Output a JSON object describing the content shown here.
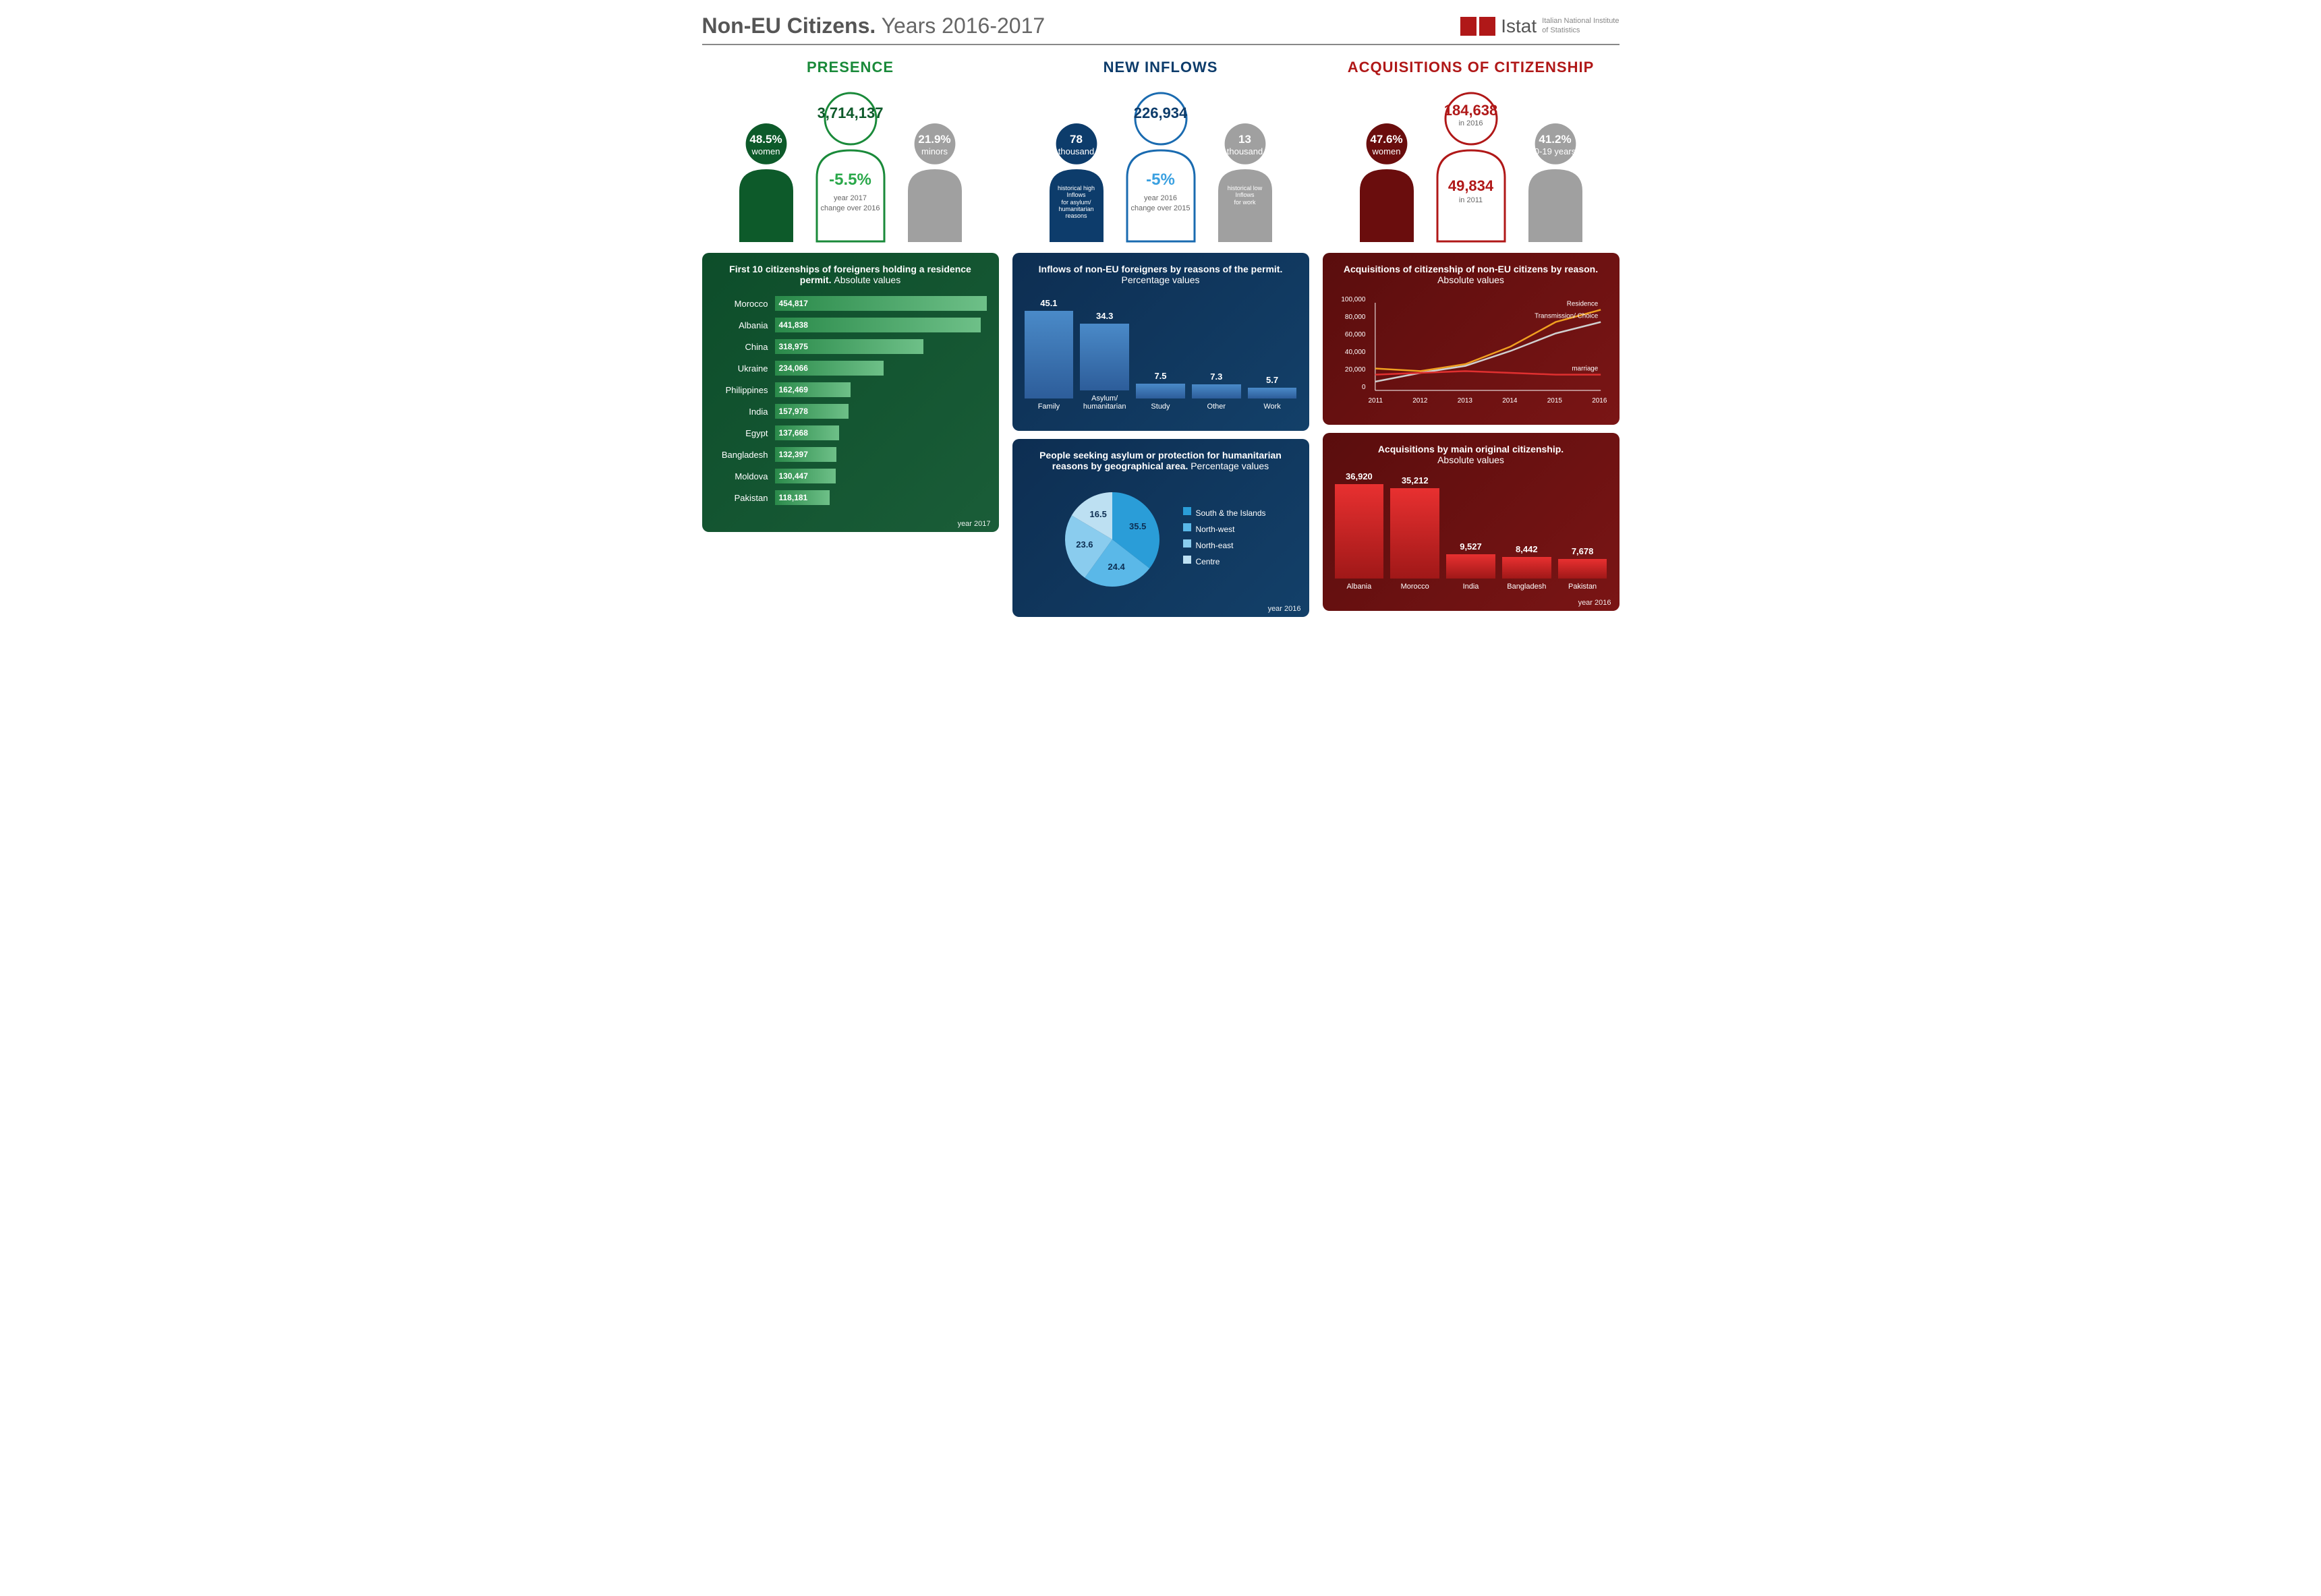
{
  "header": {
    "title_bold": "Non-EU Citizens.",
    "title_light": "Years 2016-2017",
    "logo_text": "Istat",
    "logo_sub1": "Italian National Institute",
    "logo_sub2": "of Statistics",
    "logo_color": "#b01818"
  },
  "presence": {
    "title": "PRESENCE",
    "title_color": "#1a8a3a",
    "left": {
      "line1": "48.5%",
      "line2": "women",
      "fill": "#0d5a2a"
    },
    "center": {
      "big": "3,714,137",
      "change": "-5.5%",
      "footer1": "year 2017",
      "footer2": "change over 2016",
      "stroke": "#1a8a3a",
      "big_color": "#0d5a2a",
      "change_color": "#2aa84a"
    },
    "right": {
      "line1": "21.9%",
      "line2": "minors",
      "fill": "#a0a0a0"
    },
    "panel": {
      "title_bold": "First 10 citizenships of foreigners holding a residence permit.",
      "title_sub": "Absolute values",
      "year": "year 2017",
      "max": 454817,
      "bars": [
        {
          "label": "Morocco",
          "value": 454817,
          "value_str": "454,817"
        },
        {
          "label": "Albania",
          "value": 441838,
          "value_str": "441,838"
        },
        {
          "label": "China",
          "value": 318975,
          "value_str": "318,975"
        },
        {
          "label": "Ukraine",
          "value": 234066,
          "value_str": "234,066"
        },
        {
          "label": "Philippines",
          "value": 162469,
          "value_str": "162,469"
        },
        {
          "label": "India",
          "value": 157978,
          "value_str": "157,978"
        },
        {
          "label": "Egypt",
          "value": 137668,
          "value_str": "137,668"
        },
        {
          "label": "Bangladesh",
          "value": 132397,
          "value_str": "132,397"
        },
        {
          "label": "Moldova",
          "value": 130447,
          "value_str": "130,447"
        },
        {
          "label": "Pakistan",
          "value": 118181,
          "value_str": "118,181"
        }
      ]
    }
  },
  "inflows": {
    "title": "NEW INFLOWS",
    "title_color": "#0d3c6b",
    "left": {
      "line1": "78",
      "line2": "thousand",
      "sub1": "historical high",
      "sub2": "Inflows",
      "sub3": "for asylum/",
      "sub4": "humanitarian",
      "sub5": "reasons",
      "fill": "#0d3c6b"
    },
    "center": {
      "big": "226,934",
      "change": "-5%",
      "footer1": "year 2016",
      "footer2": "change over 2015",
      "stroke": "#1a6bb0",
      "big_color": "#0d3c6b",
      "change_color": "#3aa0e0"
    },
    "right": {
      "line1": "13",
      "line2": "thousand",
      "sub1": "historical low",
      "sub2": "Inflows",
      "sub3": "for work",
      "fill": "#a0a0a0"
    },
    "panel1": {
      "title_bold": "Inflows of non-EU foreigners by reasons of the permit.",
      "title_sub": "Percentage values",
      "max": 45.1,
      "bars": [
        {
          "label": "Family",
          "value": 45.1,
          "value_str": "45.1"
        },
        {
          "label": "Asylum/ humanitarian",
          "value": 34.3,
          "value_str": "34.3"
        },
        {
          "label": "Study",
          "value": 7.5,
          "value_str": "7.5"
        },
        {
          "label": "Other",
          "value": 7.3,
          "value_str": "7.3"
        },
        {
          "label": "Work",
          "value": 5.7,
          "value_str": "5.7"
        }
      ]
    },
    "panel2": {
      "title_bold": "People seeking asylum or protection for humanitarian reasons by geographical area.",
      "title_sub": "Percentage values",
      "year": "year 2016",
      "slices": [
        {
          "label": "South & the Islands",
          "value": 35.5,
          "color": "#2a9dd8"
        },
        {
          "label": "North-west",
          "value": 24.4,
          "color": "#5ab8e8"
        },
        {
          "label": "North-east",
          "value": 23.6,
          "color": "#8accee"
        },
        {
          "label": "Centre",
          "value": 16.5,
          "color": "#bde0f2"
        }
      ]
    }
  },
  "acquisitions": {
    "title": "ACQUISITIONS OF CITIZENSHIP",
    "title_color": "#b01818",
    "left": {
      "line1": "47.6%",
      "line2": "women",
      "fill": "#6a0d0d"
    },
    "center": {
      "big": "184,638",
      "big_sub": "in 2016",
      "second": "49,834",
      "second_sub": "in 2011",
      "stroke": "#b01818",
      "big_color": "#b01818"
    },
    "right": {
      "line1": "41.2%",
      "line2": "0-19 years",
      "fill": "#a0a0a0"
    },
    "panel1": {
      "title_bold": "Acquisitions of citizenship of non-EU citizens by reason.",
      "title_sub": "Absolute values",
      "ylim": [
        0,
        100000
      ],
      "ytick_step": 20000,
      "yticks": [
        "0",
        "20,000",
        "40,000",
        "60,000",
        "80,000",
        "100,000"
      ],
      "xlabels": [
        "2011",
        "2012",
        "2013",
        "2014",
        "2015",
        "2016"
      ],
      "series": [
        {
          "name": "Residence",
          "color": "#f0a020",
          "data": [
            25000,
            22000,
            30000,
            50000,
            78000,
            92000
          ]
        },
        {
          "name": "Transmission/ Choice",
          "color": "#d0d0d0",
          "data": [
            10000,
            20000,
            28000,
            45000,
            65000,
            78000
          ]
        },
        {
          "name": "marriage",
          "color": "#e03030",
          "data": [
            18000,
            20000,
            22000,
            20000,
            18000,
            18000
          ]
        }
      ]
    },
    "panel2": {
      "title_bold": "Acquisitions by main original citizenship.",
      "title_sub": "Absolute values",
      "year": "year 2016",
      "max": 36920,
      "bars": [
        {
          "label": "Albania",
          "value": 36920,
          "value_str": "36,920"
        },
        {
          "label": "Morocco",
          "value": 35212,
          "value_str": "35,212"
        },
        {
          "label": "India",
          "value": 9527,
          "value_str": "9,527"
        },
        {
          "label": "Bangladesh",
          "value": 8442,
          "value_str": "8,442"
        },
        {
          "label": "Pakistan",
          "value": 7678,
          "value_str": "7,678"
        }
      ]
    }
  }
}
